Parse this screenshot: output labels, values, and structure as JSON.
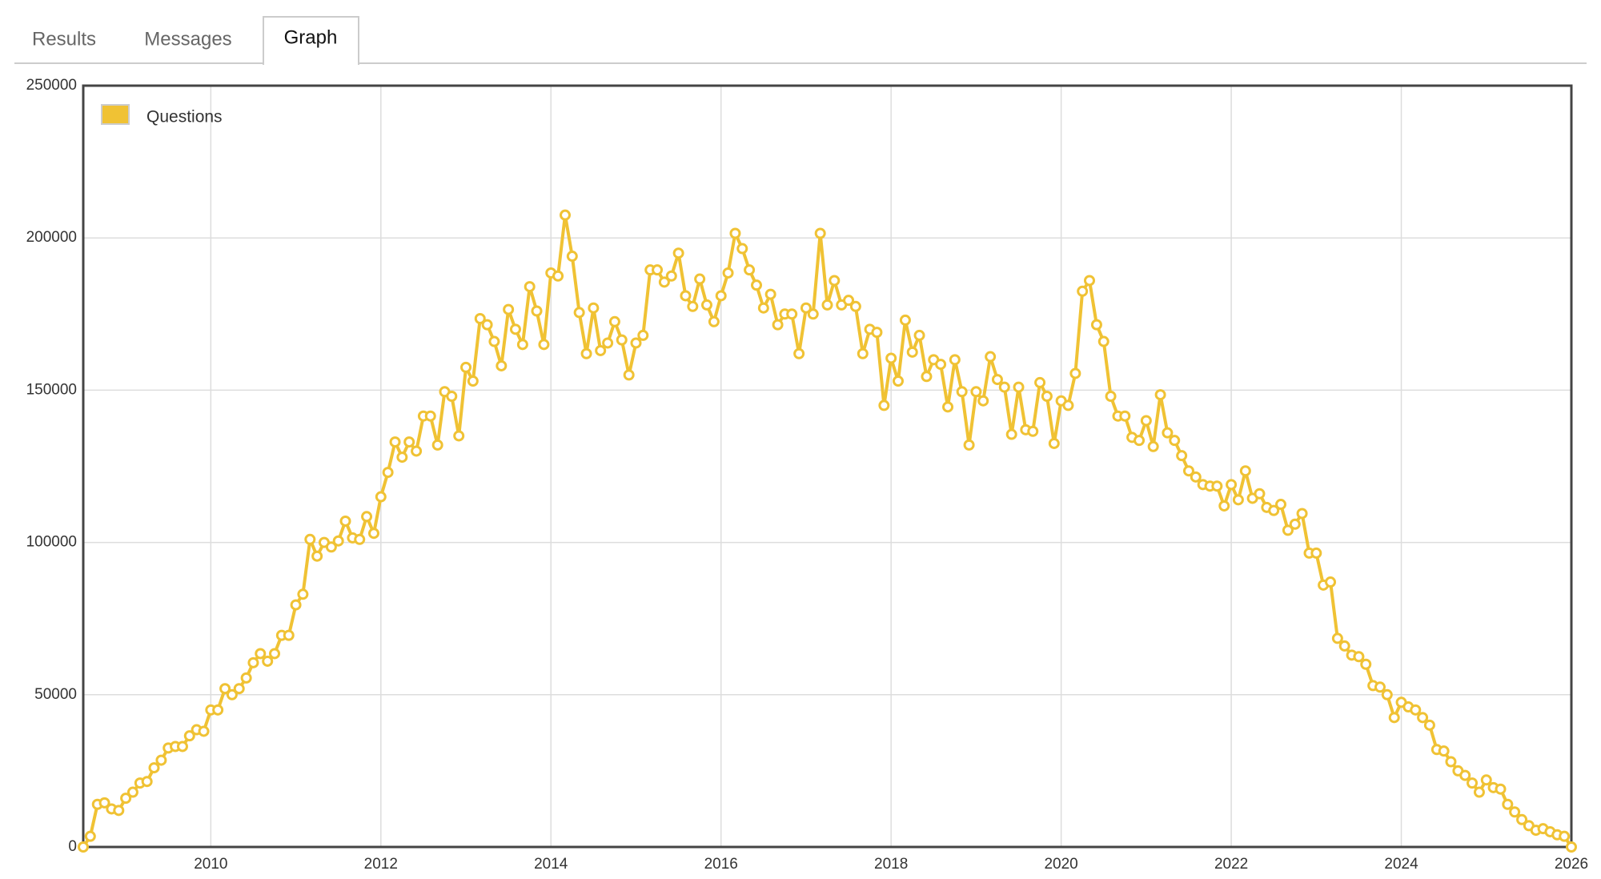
{
  "tabs": [
    "Results",
    "Messages",
    "Graph"
  ],
  "chart_data": {
    "type": "line",
    "legend": "top-left",
    "grid": true,
    "xlim": [
      2008.5,
      2026
    ],
    "xticks": [
      2010,
      2012,
      2014,
      2016,
      2018,
      2020,
      2022,
      2024,
      2026
    ],
    "ylim": [
      0,
      250000
    ],
    "yticks": [
      0,
      50000,
      100000,
      150000,
      200000,
      250000
    ],
    "x": [
      2008.5,
      2008.583,
      2008.667,
      2008.75,
      2008.833,
      2008.917,
      2009,
      2009.083,
      2009.167,
      2009.25,
      2009.333,
      2009.417,
      2009.5,
      2009.583,
      2009.667,
      2009.75,
      2009.833,
      2009.917,
      2010,
      2010.083,
      2010.167,
      2010.25,
      2010.333,
      2010.417,
      2010.5,
      2010.583,
      2010.667,
      2010.75,
      2010.833,
      2010.917,
      2011,
      2011.083,
      2011.167,
      2011.25,
      2011.333,
      2011.417,
      2011.5,
      2011.583,
      2011.667,
      2011.75,
      2011.833,
      2011.917,
      2012,
      2012.083,
      2012.167,
      2012.25,
      2012.333,
      2012.417,
      2012.5,
      2012.583,
      2012.667,
      2012.75,
      2012.833,
      2012.917,
      2013,
      2013.083,
      2013.167,
      2013.25,
      2013.333,
      2013.417,
      2013.5,
      2013.583,
      2013.667,
      2013.75,
      2013.833,
      2013.917,
      2014,
      2014.083,
      2014.167,
      2014.25,
      2014.333,
      2014.417,
      2014.5,
      2014.583,
      2014.667,
      2014.75,
      2014.833,
      2014.917,
      2015,
      2015.083,
      2015.167,
      2015.25,
      2015.333,
      2015.417,
      2015.5,
      2015.583,
      2015.667,
      2015.75,
      2015.833,
      2015.917,
      2016,
      2016.083,
      2016.167,
      2016.25,
      2016.333,
      2016.417,
      2016.5,
      2016.583,
      2016.667,
      2016.75,
      2016.833,
      2016.917,
      2017,
      2017.083,
      2017.167,
      2017.25,
      2017.333,
      2017.417,
      2017.5,
      2017.583,
      2017.667,
      2017.75,
      2017.833,
      2017.917,
      2018,
      2018.083,
      2018.167,
      2018.25,
      2018.333,
      2018.417,
      2018.5,
      2018.583,
      2018.667,
      2018.75,
      2018.833,
      2018.917,
      2019,
      2019.083,
      2019.167,
      2019.25,
      2019.333,
      2019.417,
      2019.5,
      2019.583,
      2019.667,
      2019.75,
      2019.833,
      2019.917,
      2020,
      2020.083,
      2020.167,
      2020.25,
      2020.333,
      2020.417,
      2020.5,
      2020.583,
      2020.667,
      2020.75,
      2020.833,
      2020.917,
      2021,
      2021.083,
      2021.167,
      2021.25,
      2021.333,
      2021.417,
      2021.5,
      2021.583,
      2021.667,
      2021.75,
      2021.833,
      2021.917,
      2022,
      2022.083,
      2022.167,
      2022.25,
      2022.333,
      2022.417,
      2022.5,
      2022.583,
      2022.667,
      2022.75,
      2022.833,
      2022.917,
      2023,
      2023.083,
      2023.167,
      2023.25,
      2023.333,
      2023.417,
      2023.5,
      2023.583,
      2023.667,
      2023.75,
      2023.833,
      2023.917,
      2024,
      2024.083,
      2024.167,
      2024.25,
      2024.333,
      2024.417,
      2024.5,
      2024.583,
      2024.667,
      2024.75,
      2024.833,
      2024.917,
      2025,
      2025.083,
      2025.167,
      2025.25,
      2025.333,
      2025.417,
      2025.5,
      2025.583,
      2025.667,
      2025.75,
      2025.833,
      2025.917,
      2026
    ],
    "series": [
      {
        "name": "Questions",
        "color": "#f0c234",
        "values": [
          0,
          3500,
          14000,
          14500,
          12500,
          12000,
          16000,
          18000,
          21000,
          21500,
          26000,
          28500,
          32500,
          33000,
          33000,
          36500,
          38500,
          38000,
          45000,
          45000,
          52000,
          50000,
          52000,
          55500,
          60500,
          63500,
          61000,
          63500,
          69500,
          69500,
          79500,
          83000,
          101000,
          95500,
          100000,
          98500,
          100500,
          107000,
          101500,
          101000,
          108500,
          103000,
          115000,
          123000,
          133000,
          128000,
          133000,
          130000,
          141500,
          141500,
          132000,
          149500,
          148000,
          135000,
          157500,
          153000,
          173500,
          171500,
          166000,
          158000,
          176500,
          170000,
          165000,
          184000,
          176000,
          165000,
          188500,
          187500,
          207500,
          194000,
          175500,
          162000,
          177000,
          163000,
          165500,
          172500,
          166500,
          155000,
          165500,
          168000,
          189500,
          189500,
          185500,
          187500,
          195000,
          181000,
          177500,
          186500,
          178000,
          172500,
          181000,
          188500,
          201500,
          196500,
          189500,
          184500,
          177000,
          181500,
          171500,
          175000,
          175000,
          162000,
          177000,
          175000,
          201500,
          178000,
          186000,
          178000,
          179500,
          177500,
          162000,
          170000,
          169000,
          145000,
          160500,
          153000,
          173000,
          162500,
          168000,
          154500,
          160000,
          158500,
          144500,
          160000,
          149500,
          132000,
          149500,
          146500,
          161000,
          153500,
          151000,
          135500,
          151000,
          137000,
          136500,
          152500,
          148000,
          132500,
          146500,
          145000,
          155500,
          182500,
          186000,
          171500,
          166000,
          148000,
          141500,
          141500,
          134500,
          133500,
          140000,
          131500,
          148500,
          136000,
          133500,
          128500,
          123500,
          121500,
          119000,
          118500,
          118500,
          112000,
          119000,
          114000,
          123500,
          114500,
          116000,
          111500,
          110500,
          112500,
          104000,
          106000,
          109500,
          96500,
          96500,
          86000,
          87000,
          68500,
          66000,
          63000,
          62500,
          60000,
          53000,
          52500,
          50000,
          42500,
          47500,
          46000,
          45000,
          42500,
          40000,
          32000,
          31500,
          28000,
          25000,
          23500,
          21000,
          18000,
          22000,
          19500,
          19000,
          14000,
          11500,
          9000,
          7000,
          5500,
          6000,
          5000,
          4000,
          3500,
          0
        ]
      }
    ]
  }
}
